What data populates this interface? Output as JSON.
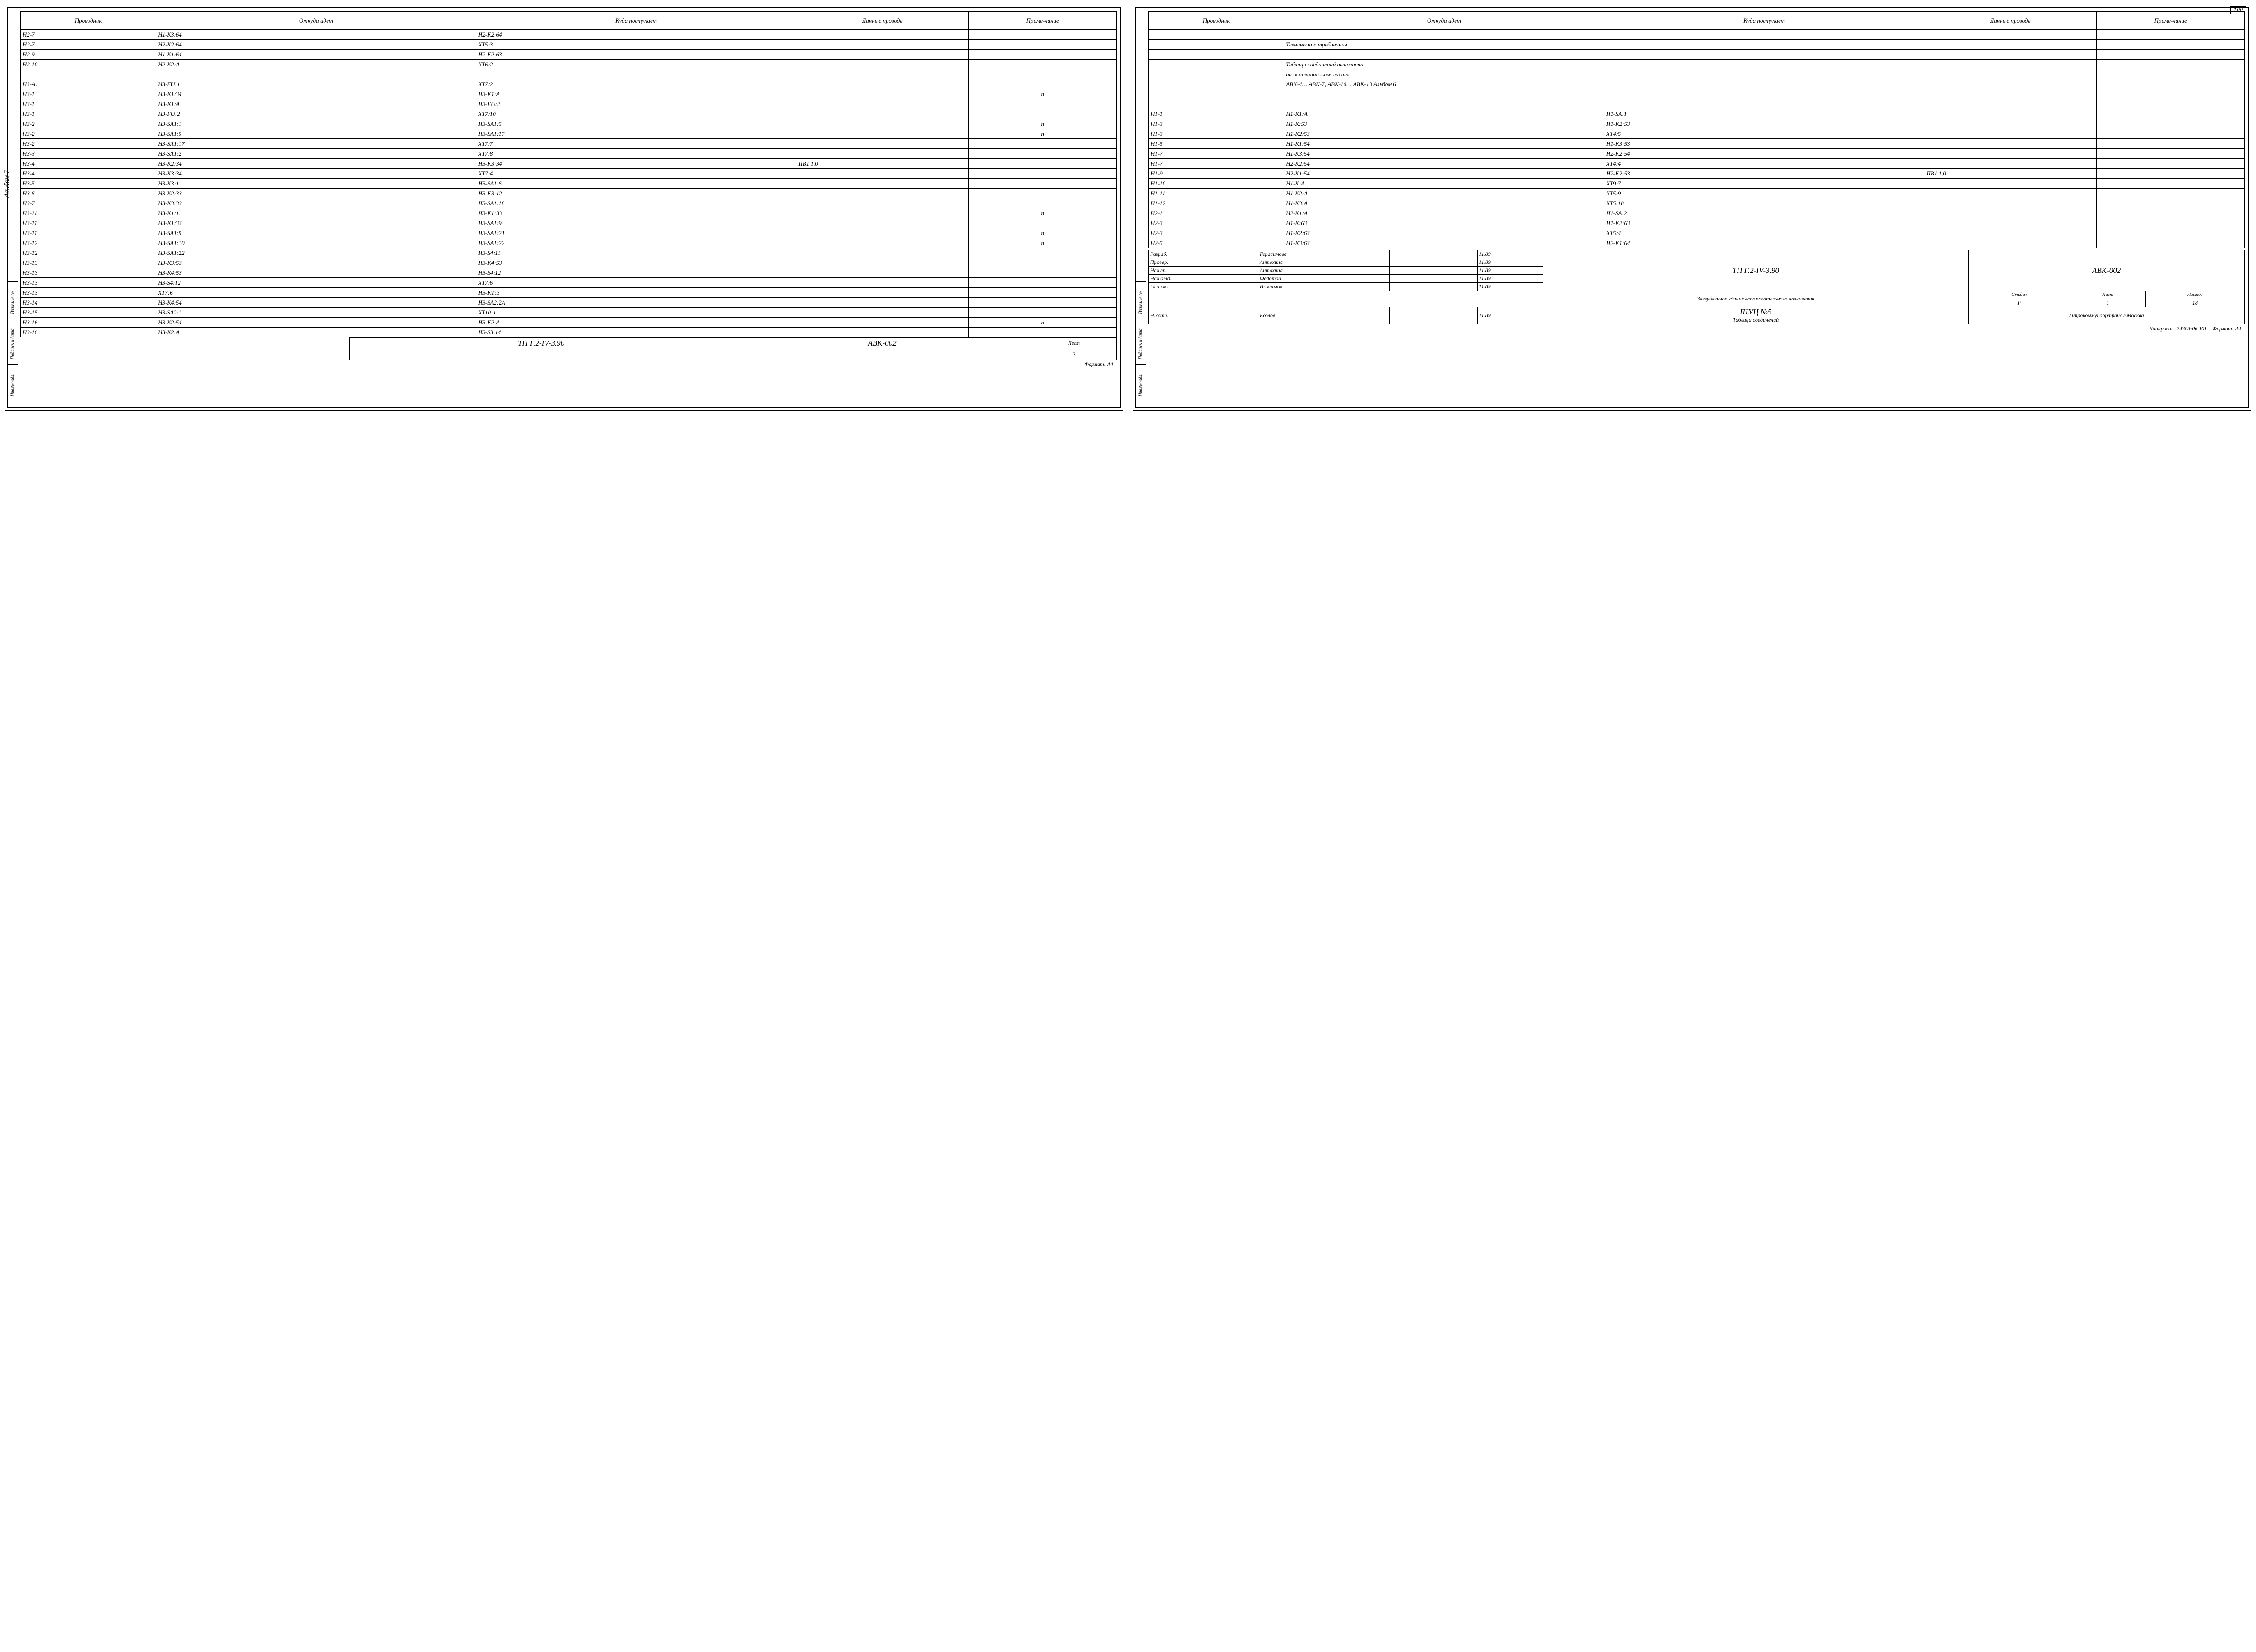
{
  "album_label": "Альбом 7",
  "page_number": "100",
  "headers": {
    "provodnik": "Проводник",
    "otkuda": "Откуда идет",
    "kuda": "Куда поступает",
    "dannye": "Данные провода",
    "prim": "Приме-чание"
  },
  "left_rows": [
    {
      "p": "Н2-7",
      "o": "Н1-К3:64",
      "k": "Н2-К2:64",
      "d": "",
      "n": ""
    },
    {
      "p": "Н2-7",
      "o": "Н2-К2:64",
      "k": "ХТ5:3",
      "d": "",
      "n": ""
    },
    {
      "p": "Н2-9",
      "o": "Н1-К1:64",
      "k": "Н2-К2:63",
      "d": "",
      "n": ""
    },
    {
      "p": "Н2-10",
      "o": "Н2-К2:А",
      "k": "ХТ6:2",
      "d": "",
      "n": ""
    },
    {
      "p": "",
      "o": "",
      "k": "",
      "d": "",
      "n": ""
    },
    {
      "p": "Н3-А1",
      "o": "Н3-FU:1",
      "k": "ХТ7:2",
      "d": "",
      "n": ""
    },
    {
      "p": "Н3-1",
      "o": "Н3-К1:34",
      "k": "Н3-К1:А",
      "d": "",
      "n": "п"
    },
    {
      "p": "Н3-1",
      "o": "Н3-К1:А",
      "k": "Н3-FU:2",
      "d": "",
      "n": ""
    },
    {
      "p": "Н3-1",
      "o": "Н3-FU:2",
      "k": "ХТ7:10",
      "d": "",
      "n": ""
    },
    {
      "p": "Н3-2",
      "o": "Н3-SA1:1",
      "k": "Н3-SA1:5",
      "d": "",
      "n": "п"
    },
    {
      "p": "Н3-2",
      "o": "Н3-SA1:5",
      "k": "Н3-SA1:17",
      "d": "",
      "n": "п"
    },
    {
      "p": "Н3-2",
      "o": "Н3-SA1:17",
      "k": "ХТ7:7",
      "d": "",
      "n": ""
    },
    {
      "p": "Н3-3",
      "o": "Н3-SA1:2",
      "k": "ХТ7:8",
      "d": "",
      "n": ""
    },
    {
      "p": "Н3-4",
      "o": "Н3-К2:34",
      "k": "Н3-К3:34",
      "d": "ПВ1 1,0",
      "n": ""
    },
    {
      "p": "Н3-4",
      "o": "Н3-К3:34",
      "k": "ХТ7:4",
      "d": "",
      "n": ""
    },
    {
      "p": "Н3-5",
      "o": "Н3-К3:11",
      "k": "Н3-SA1:6",
      "d": "",
      "n": ""
    },
    {
      "p": "Н3-6",
      "o": "Н3-К2:33",
      "k": "Н3-К3:12",
      "d": "",
      "n": ""
    },
    {
      "p": "Н3-7",
      "o": "Н3-К3:33",
      "k": "Н3-SA1:18",
      "d": "",
      "n": ""
    },
    {
      "p": "Н3-11",
      "o": "Н3-К1:11",
      "k": "Н3-К1:33",
      "d": "",
      "n": "п"
    },
    {
      "p": "Н3-11",
      "o": "Н3-К1:33",
      "k": "Н3-SA1:9",
      "d": "",
      "n": ""
    },
    {
      "p": "Н3-11",
      "o": "Н3-SA1:9",
      "k": "Н3-SA1:21",
      "d": "",
      "n": "п"
    },
    {
      "p": "Н3-12",
      "o": "Н3-SA1:10",
      "k": "Н3-SA1:22",
      "d": "",
      "n": "п"
    },
    {
      "p": "Н3-12",
      "o": "Н3-SA1:22",
      "k": "Н3-S4:11",
      "d": "",
      "n": ""
    },
    {
      "p": "Н3-13",
      "o": "Н3-К3:53",
      "k": "Н3-К4:53",
      "d": "",
      "n": ""
    },
    {
      "p": "Н3-13",
      "o": "Н3-К4:53",
      "k": "Н3-S4:12",
      "d": "",
      "n": ""
    },
    {
      "p": "Н3-13",
      "o": "Н3-S4:12",
      "k": "ХТ7:6",
      "d": "",
      "n": ""
    },
    {
      "p": "Н3-13",
      "o": "ХТ7:6",
      "k": "Н3-КТ:3",
      "d": "",
      "n": ""
    },
    {
      "p": "Н3-14",
      "o": "Н3-К4:54",
      "k": "Н3-SA2:2А",
      "d": "",
      "n": ""
    },
    {
      "p": "Н3-15",
      "o": "Н3-SA2:1",
      "k": "ХТ10:1",
      "d": "",
      "n": ""
    },
    {
      "p": "Н3-16",
      "o": "Н3-К2:54",
      "k": "Н3-К2:А",
      "d": "",
      "n": "п"
    },
    {
      "p": "Н3-16",
      "o": "Н3-К2:А",
      "k": "Н3-S3:14",
      "d": "",
      "n": ""
    }
  ],
  "right_text_rows": [
    "Технические требования",
    "",
    "Таблица соединений выполнена",
    "на основании схем листы",
    "АВК-4… АВК-7, АВК-10… АВК-13   Альбом 6"
  ],
  "right_rows": [
    {
      "p": "Н1-1",
      "o": "Н1-К1:А",
      "k": "Н1-SA:1",
      "d": "",
      "n": ""
    },
    {
      "p": "Н1-3",
      "o": "Н1-К:53",
      "k": "Н1-К2:53",
      "d": "",
      "n": ""
    },
    {
      "p": "Н1-3",
      "o": "Н1-К2:53",
      "k": "ХТ4:5",
      "d": "",
      "n": ""
    },
    {
      "p": "Н1-5",
      "o": "Н1-К1:54",
      "k": "Н1-К3:53",
      "d": "",
      "n": ""
    },
    {
      "p": "Н1-7",
      "o": "Н1-К3:54",
      "k": "Н2-К2:54",
      "d": "",
      "n": ""
    },
    {
      "p": "Н1-7",
      "o": "Н2-К2:54",
      "k": "ХТ4:4",
      "d": "",
      "n": ""
    },
    {
      "p": "Н1-9",
      "o": "Н2-К1:54",
      "k": "Н2-К2:53",
      "d": "ПВ1 1,0",
      "n": ""
    },
    {
      "p": "Н1-10",
      "o": "Н1-К:А",
      "k": "ХТ9:7",
      "d": "",
      "n": ""
    },
    {
      "p": "Н1-11",
      "o": "Н1-К2:А",
      "k": "ХТ5:9",
      "d": "",
      "n": ""
    },
    {
      "p": "Н1-12",
      "o": "Н1-К3:А",
      "k": "ХТ5:10",
      "d": "",
      "n": ""
    },
    {
      "p": "Н2-1",
      "o": "Н2-К1:А",
      "k": "Н1-SA:2",
      "d": "",
      "n": ""
    },
    {
      "p": "Н2-3",
      "o": "Н1-К:63",
      "k": "Н1-К2:63",
      "d": "",
      "n": ""
    },
    {
      "p": "Н2-3",
      "o": "Н1-К2:63",
      "k": "ХТ5:4",
      "d": "",
      "n": ""
    },
    {
      "p": "Н2-5",
      "o": "Н1-К3:63",
      "k": "Н2-К1:64",
      "d": "",
      "n": ""
    }
  ],
  "left_footer": {
    "code": "ТП Г.2-IV-3.90",
    "doc": "АВК-002",
    "list_label": "Лист",
    "list_num": "2"
  },
  "format": "Формат: А4",
  "side_labels": [
    "Инв.№подл.",
    "Подпись и дата",
    "Взам.инв.№"
  ],
  "stamp": {
    "roles": [
      {
        "r": "Разраб.",
        "n": "Герасимова",
        "d": "11.89"
      },
      {
        "r": "Провер.",
        "n": "Антохина",
        "d": "11.89"
      },
      {
        "r": "Нач.гр.",
        "n": "Антохина",
        "d": "11.89"
      },
      {
        "r": "Нач.отд.",
        "n": "Федотов",
        "d": "11.89"
      },
      {
        "r": "Гл.инж.",
        "n": "Исмаилов",
        "d": "11.89"
      }
    ],
    "code": "ТП Г.2-IV-3.90",
    "doc": "АВК-002",
    "title1": "Заглубленное здание вспомогательного назначения",
    "stadiya_h": "Стадия",
    "list_h": "Лист",
    "listov_h": "Листов",
    "stadiya": "Р",
    "list": "1",
    "listov": "18",
    "nkont_r": "Н.конт.",
    "nkont_n": "Козлов",
    "nkont_d": "11.89",
    "title2a": "ЩУЦ №5",
    "title2b": "Таблица соединений",
    "org": "Гипрокоммундортранс г.Москва",
    "kopir": "Копировал:        24383-06 101"
  }
}
